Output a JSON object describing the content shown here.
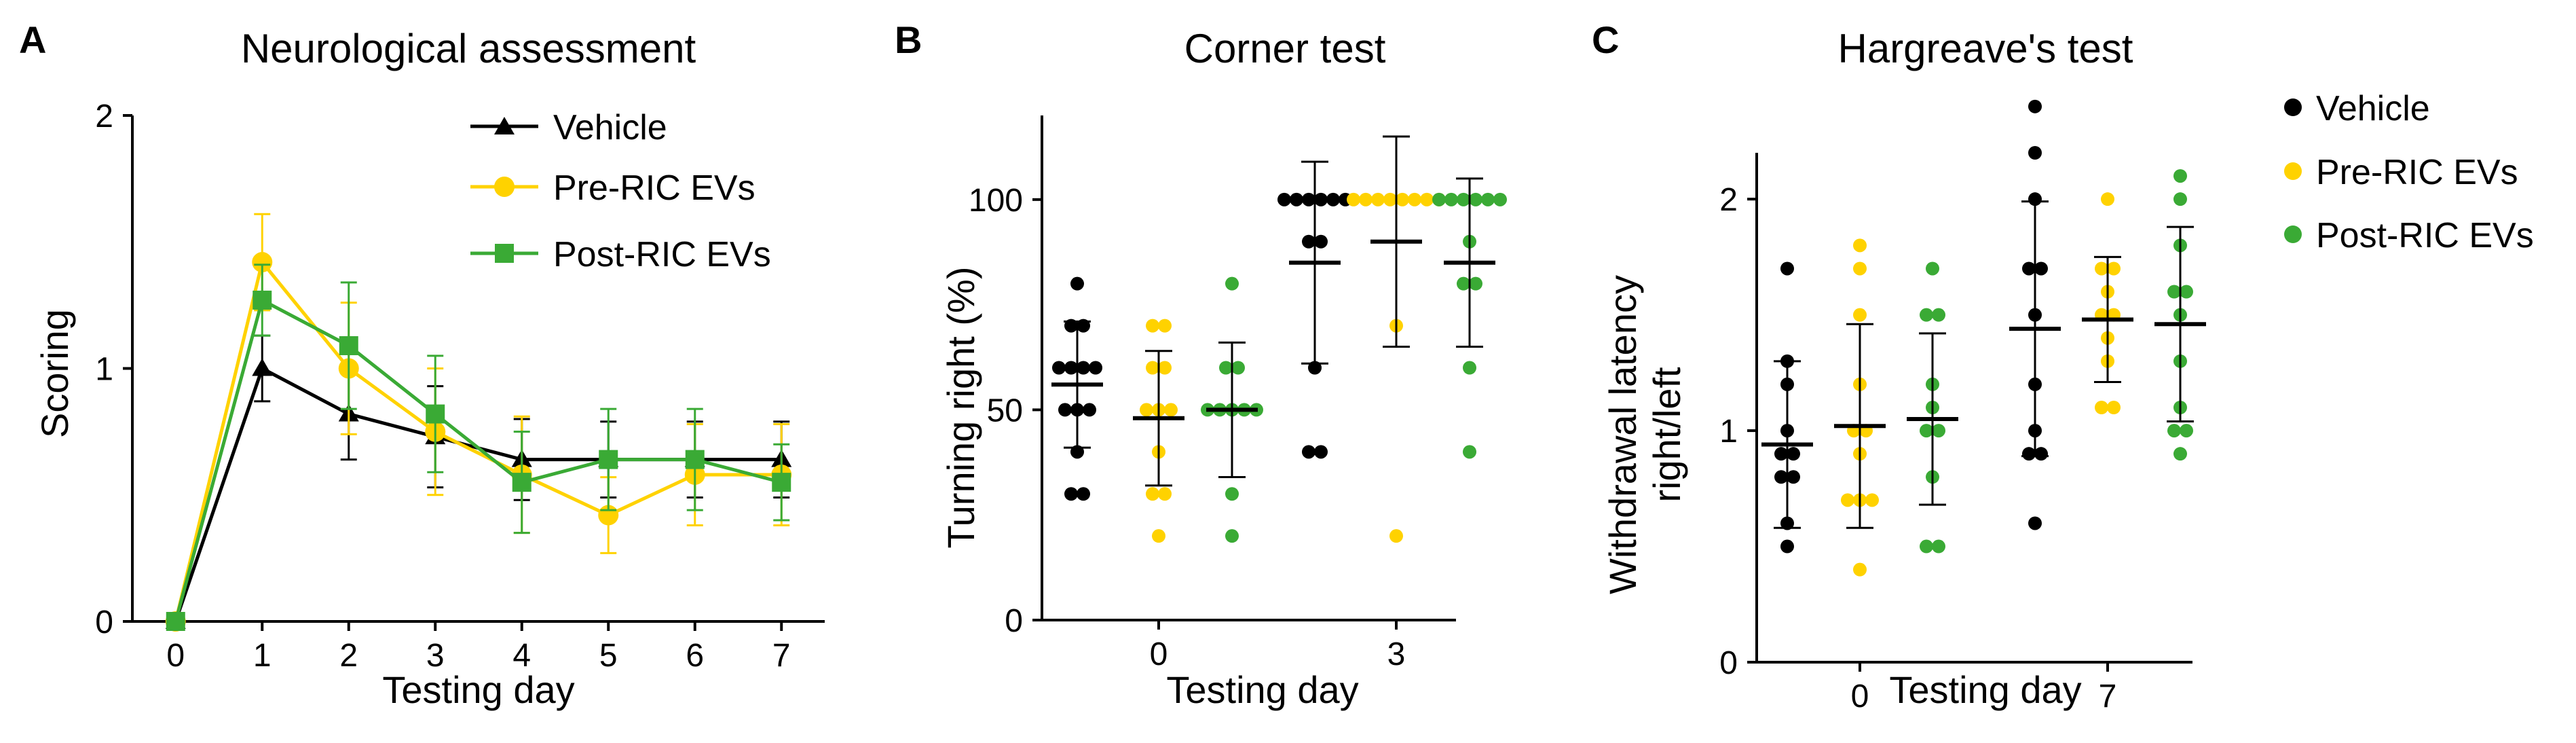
{
  "colors": {
    "vehicle": "#000000",
    "pre": "#FFD200",
    "post": "#3AAA35",
    "axis": "#000000"
  },
  "chart_data": [
    {
      "panel": "A",
      "type": "line",
      "title": "Neurological assessment",
      "xlabel": "Testing day",
      "ylabel": "Scoring",
      "x": [
        0,
        1,
        2,
        3,
        4,
        5,
        6,
        7
      ],
      "xlim": [
        -0.5,
        7.5
      ],
      "ylim": [
        0,
        2
      ],
      "yticks": [
        "0",
        "1",
        "2"
      ],
      "xticks": [
        "0",
        "1",
        "2",
        "3",
        "4",
        "5",
        "6",
        "7"
      ],
      "legend_position": "top-right",
      "series": [
        {
          "name": "Vehicle",
          "marker": "triangle",
          "values": [
            0,
            1.0,
            0.82,
            0.73,
            0.64,
            0.64,
            0.64,
            0.64
          ],
          "err": [
            0,
            0.13,
            0.18,
            0.2,
            0.16,
            0.15,
            0.15,
            0.15
          ]
        },
        {
          "name": "Pre-RIC EVs",
          "marker": "circle",
          "values": [
            0,
            1.42,
            1.0,
            0.75,
            0.58,
            0.42,
            0.58,
            0.58
          ],
          "err": [
            0,
            0.19,
            0.26,
            0.25,
            0.23,
            0.15,
            0.2,
            0.2
          ]
        },
        {
          "name": "Post-RIC EVs",
          "marker": "square",
          "values": [
            0,
            1.27,
            1.09,
            0.82,
            0.55,
            0.64,
            0.64,
            0.55
          ],
          "err": [
            0,
            0.14,
            0.25,
            0.23,
            0.2,
            0.2,
            0.2,
            0.15
          ]
        }
      ]
    },
    {
      "panel": "B",
      "type": "scatter",
      "title": "Corner test",
      "xlabel": "Testing day",
      "ylabel": "Turning right (%)",
      "categories": [
        "0",
        "3"
      ],
      "ylim": [
        0,
        120
      ],
      "yticks": [
        "0",
        "50",
        "100"
      ],
      "series": [
        {
          "name": "Vehicle",
          "groups": [
            {
              "points": [
                80,
                70,
                70,
                60,
                60,
                60,
                60,
                50,
                50,
                50,
                40,
                30,
                30
              ],
              "mean": 56,
              "sd": 15
            },
            {
              "points": [
                100,
                100,
                100,
                100,
                100,
                100,
                90,
                90,
                60,
                40,
                40
              ],
              "mean": 85,
              "sd": 24
            }
          ]
        },
        {
          "name": "Pre-RIC EVs",
          "groups": [
            {
              "points": [
                70,
                70,
                60,
                60,
                50,
                50,
                50,
                40,
                30,
                30,
                20
              ],
              "mean": 48,
              "sd": 16
            },
            {
              "points": [
                100,
                100,
                100,
                100,
                100,
                100,
                100,
                100,
                70,
                20
              ],
              "mean": 90,
              "sd": 25
            }
          ]
        },
        {
          "name": "Post-RIC EVs",
          "groups": [
            {
              "points": [
                80,
                60,
                60,
                50,
                50,
                50,
                50,
                50,
                30,
                20
              ],
              "mean": 50,
              "sd": 16
            },
            {
              "points": [
                100,
                100,
                100,
                100,
                100,
                100,
                90,
                80,
                80,
                60,
                40
              ],
              "mean": 85,
              "sd": 20
            }
          ]
        }
      ]
    },
    {
      "panel": "C",
      "type": "scatter",
      "title": "Hargreave's test",
      "xlabel": "Testing day",
      "ylabel": "Withdrawal latency",
      "ylabel2": "right/left",
      "categories": [
        "0",
        "7"
      ],
      "ylim": [
        0,
        2.2
      ],
      "yticks": [
        "0",
        "1",
        "2"
      ],
      "legend_position": "right",
      "series": [
        {
          "name": "Vehicle",
          "groups": [
            {
              "points": [
                1.7,
                1.3,
                1.2,
                1.0,
                0.9,
                0.9,
                0.8,
                0.8,
                0.6,
                0.5
              ],
              "mean": 0.94,
              "sd": 0.36
            },
            {
              "points": [
                2.4,
                2.2,
                2.0,
                1.7,
                1.7,
                1.5,
                1.2,
                1.0,
                0.9,
                0.9,
                0.6
              ],
              "mean": 1.44,
              "sd": 0.55
            }
          ]
        },
        {
          "name": "Pre-RIC EVs",
          "groups": [
            {
              "points": [
                1.8,
                1.7,
                1.5,
                1.2,
                1.0,
                1.0,
                0.9,
                0.7,
                0.7,
                0.7,
                0.4
              ],
              "mean": 1.02,
              "sd": 0.44
            },
            {
              "points": [
                2.0,
                1.7,
                1.7,
                1.6,
                1.5,
                1.5,
                1.4,
                1.3,
                1.1,
                1.1
              ],
              "mean": 1.48,
              "sd": 0.27
            }
          ]
        },
        {
          "name": "Post-RIC EVs",
          "groups": [
            {
              "points": [
                1.7,
                1.5,
                1.5,
                1.2,
                1.1,
                1.0,
                1.0,
                0.8,
                0.5,
                0.5
              ],
              "mean": 1.05,
              "sd": 0.37
            },
            {
              "points": [
                2.1,
                2.0,
                1.8,
                1.6,
                1.6,
                1.5,
                1.3,
                1.1,
                1.0,
                1.0,
                0.9
              ],
              "mean": 1.46,
              "sd": 0.42
            }
          ]
        }
      ]
    }
  ]
}
